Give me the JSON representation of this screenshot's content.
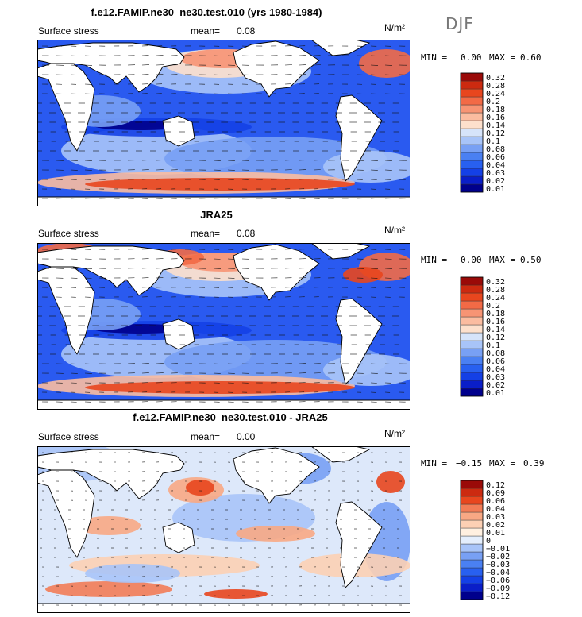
{
  "season": "DJF",
  "chart_data": [
    {
      "type": "heatmap",
      "title": "f.e12.FAMIP.ne30_ne30.test.010 (yrs 1980-1984)",
      "variable_label": "Surface stress",
      "mean_label": "mean=",
      "mean_value": "0.08",
      "units": "N/m²",
      "min_label": "MIN =",
      "min_value": "0.00",
      "max_label": "MAX =",
      "max_value": "0.60",
      "colorbar_levels": [
        "0.01",
        "0.02",
        "0.03",
        "0.04",
        "0.06",
        "0.08",
        "0.1",
        "0.12",
        "0.14",
        "0.16",
        "0.18",
        "0.2",
        "0.24",
        "0.28",
        "0.32"
      ],
      "colorbar_colors": [
        "#00008c",
        "#0a1ec8",
        "#1440e6",
        "#2860f0",
        "#4a80f2",
        "#78a0f4",
        "#a8c4f8",
        "#d6e4fa",
        "#fde0cc",
        "#fbbca0",
        "#f79474",
        "#f26a46",
        "#e8461e",
        "#cc2a10",
        "#9a0a08"
      ]
    },
    {
      "type": "heatmap",
      "title": "JRA25",
      "variable_label": "Surface stress",
      "mean_label": "mean=",
      "mean_value": "0.08",
      "units": "N/m²",
      "min_label": "MIN =",
      "min_value": "0.00",
      "max_label": "MAX =",
      "max_value": "0.50",
      "colorbar_levels": [
        "0.01",
        "0.02",
        "0.03",
        "0.04",
        "0.06",
        "0.08",
        "0.1",
        "0.12",
        "0.14",
        "0.16",
        "0.18",
        "0.2",
        "0.24",
        "0.28",
        "0.32"
      ],
      "colorbar_colors": [
        "#00008c",
        "#0a1ec8",
        "#1440e6",
        "#2860f0",
        "#4a80f2",
        "#78a0f4",
        "#a8c4f8",
        "#d6e4fa",
        "#fde0cc",
        "#fbbca0",
        "#f79474",
        "#f26a46",
        "#e8461e",
        "#cc2a10",
        "#9a0a08"
      ]
    },
    {
      "type": "heatmap",
      "title": "f.e12.FAMIP.ne30_ne30.test.010 - JRA25",
      "variable_label": "Surface stress",
      "mean_label": "mean=",
      "mean_value": "0.00",
      "units": "N/m²",
      "min_label": "MIN =",
      "min_value": "−0.15",
      "max_label": "MAX =",
      "max_value": "0.39",
      "colorbar_levels": [
        "−0.12",
        "−0.09",
        "−0.06",
        "−0.04",
        "−0.03",
        "−0.02",
        "−0.01",
        "0",
        "0.01",
        "0.02",
        "0.03",
        "0.04",
        "0.06",
        "0.09",
        "0.12"
      ],
      "colorbar_colors": [
        "#00008c",
        "#0a1ec8",
        "#1440e6",
        "#2860f0",
        "#4a80f2",
        "#78a0f4",
        "#a8c4f8",
        "#e4eefc",
        "#fff0e0",
        "#fcd0b4",
        "#f8a884",
        "#f27c56",
        "#e8461e",
        "#cc2a10",
        "#9a0a08"
      ]
    }
  ]
}
